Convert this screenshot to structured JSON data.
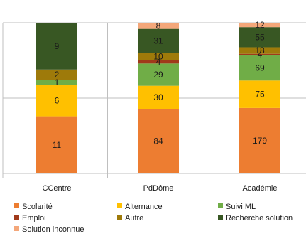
{
  "chart_data": {
    "type": "bar",
    "stacked": "100%",
    "categories": [
      "CCentre",
      "PdDôme",
      "Académie"
    ],
    "series": [
      {
        "name": "Scolarité",
        "color": "#ED7D31",
        "values": [
          11,
          84,
          179
        ]
      },
      {
        "name": "Alternance",
        "color": "#FFC000",
        "values": [
          6,
          30,
          75
        ]
      },
      {
        "name": "Suivi ML",
        "color": "#70AD47",
        "values": [
          1,
          29,
          69
        ]
      },
      {
        "name": "Emploi",
        "color": "#A0391A",
        "values": [
          0,
          4,
          4
        ]
      },
      {
        "name": "Autre",
        "color": "#9E7A0A",
        "values": [
          2,
          10,
          18
        ]
      },
      {
        "name": "Recherche solution",
        "color": "#385723",
        "values": [
          9,
          31,
          55
        ]
      },
      {
        "name": "Solution inconnue",
        "color": "#F4A77A",
        "values": [
          0,
          8,
          12
        ]
      }
    ],
    "grid": true,
    "legend": "bottom"
  }
}
